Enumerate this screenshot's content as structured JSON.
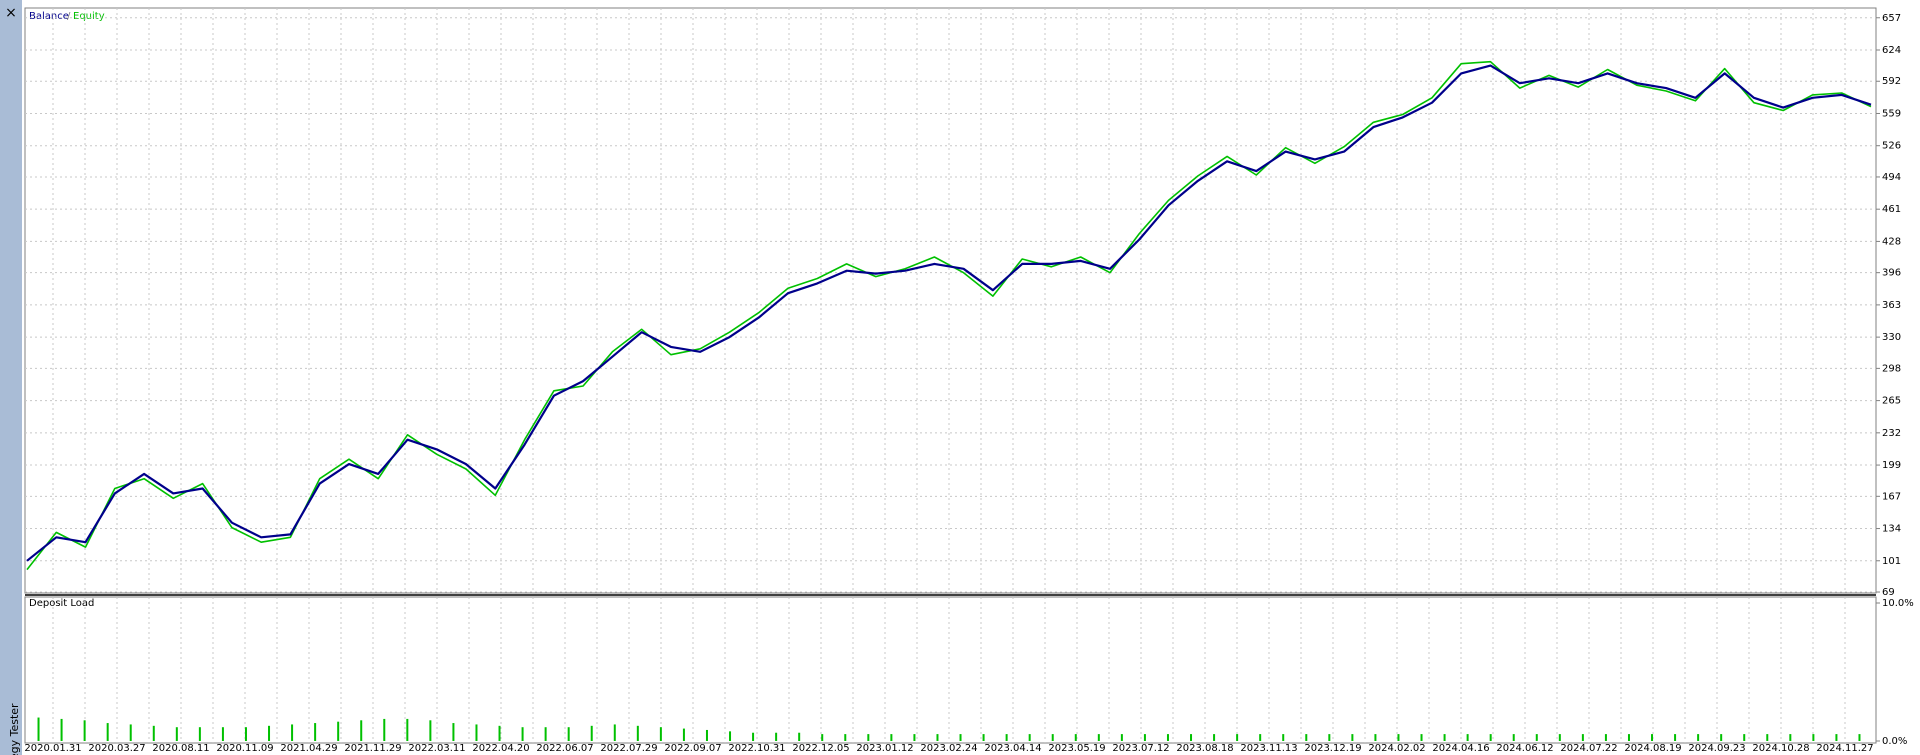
{
  "ui": {
    "close": "×",
    "panel_title": "Strategy Tester",
    "legend_separator": "/"
  },
  "chart_data": [
    {
      "type": "line",
      "series": [
        {
          "name": "Balance",
          "color": "#00008b",
          "values": [
            101,
            125,
            120,
            170,
            190,
            170,
            175,
            140,
            125,
            128,
            180,
            200,
            190,
            225,
            215,
            200,
            175,
            220,
            270,
            285,
            310,
            335,
            320,
            315,
            330,
            350,
            375,
            385,
            398,
            395,
            398,
            405,
            400,
            378,
            405,
            405,
            408,
            400,
            430,
            465,
            490,
            510,
            500,
            520,
            512,
            520,
            545,
            555,
            570,
            600,
            608,
            590,
            595,
            590,
            600,
            590,
            585,
            575,
            600,
            575,
            565,
            575,
            578,
            568
          ]
        },
        {
          "name": "Equity",
          "color": "#00c000",
          "values": [
            92,
            130,
            115,
            175,
            185,
            165,
            180,
            135,
            120,
            125,
            185,
            205,
            185,
            230,
            210,
            195,
            168,
            225,
            275,
            280,
            315,
            338,
            312,
            318,
            335,
            355,
            380,
            390,
            405,
            392,
            400,
            412,
            396,
            372,
            410,
            402,
            412,
            396,
            436,
            470,
            495,
            515,
            496,
            524,
            508,
            525,
            550,
            558,
            575,
            610,
            612,
            585,
            598,
            586,
            604,
            588,
            582,
            572,
            605,
            570,
            562,
            578,
            580,
            566
          ]
        }
      ],
      "ylim": [
        68,
        667
      ],
      "yticks": [
        69,
        101,
        134,
        167,
        199,
        232,
        265,
        298,
        330,
        363,
        396,
        428,
        461,
        494,
        526,
        559,
        592,
        624,
        657
      ],
      "grid": true
    },
    {
      "type": "bar",
      "title": "Deposit Load",
      "color": "#00c000",
      "values": [
        1.7,
        1.6,
        1.5,
        1.3,
        1.2,
        1.1,
        1.0,
        1.0,
        1.0,
        1.0,
        1.1,
        1.2,
        1.3,
        1.4,
        1.5,
        1.6,
        1.6,
        1.5,
        1.3,
        1.2,
        1.1,
        1.0,
        1.0,
        1.0,
        1.1,
        1.2,
        1.1,
        1.0,
        0.9,
        0.8,
        0.7,
        0.6,
        0.6,
        0.6,
        0.5,
        0.5,
        0.5,
        0.5,
        0.5,
        0.5,
        0.5,
        0.5,
        0.5,
        0.5,
        0.5,
        0.5,
        0.5,
        0.5,
        0.5,
        0.5,
        0.5,
        0.5,
        0.5,
        0.5,
        0.5,
        0.5,
        0.5,
        0.5,
        0.5,
        0.5,
        0.5,
        0.5,
        0.5,
        0.5,
        0.5,
        0.5,
        0.5,
        0.5,
        0.5,
        0.5,
        0.5,
        0.5,
        0.5,
        0.5,
        0.5,
        0.5,
        0.5,
        0.5,
        0.5,
        0.5
      ],
      "ylim": [
        0,
        10
      ],
      "yticks": [
        {
          "value": 10,
          "label": "10.0%"
        },
        {
          "value": 0,
          "label": "0.0%"
        }
      ],
      "x_labels": [
        "2020.01.31",
        "2020.03.27",
        "2020.08.11",
        "2020.11.09",
        "2021.04.29",
        "2021.11.29",
        "2022.03.11",
        "2022.04.20",
        "2022.06.07",
        "2022.07.29",
        "2022.09.07",
        "2022.10.31",
        "2022.12.05",
        "2023.01.12",
        "2023.02.24",
        "2023.04.14",
        "2023.05.19",
        "2023.07.12",
        "2023.08.18",
        "2023.11.13",
        "2023.12.19",
        "2024.02.02",
        "2024.04.16",
        "2024.06.12",
        "2024.07.22",
        "2024.08.19",
        "2024.09.23",
        "2024.10.28",
        "2024.11.27"
      ]
    }
  ]
}
